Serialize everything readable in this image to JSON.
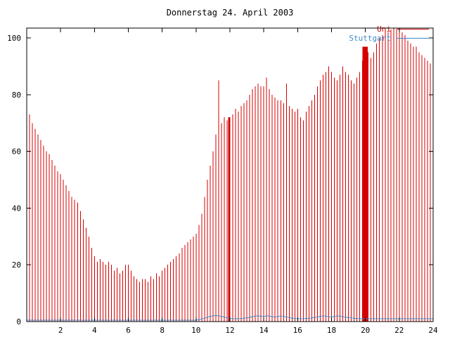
{
  "page": {
    "background": "#ffffff"
  },
  "chart_data": {
    "type": "bar",
    "title": "Donnerstag 24. April 2003",
    "xlabel": "",
    "ylabel": "",
    "xlim": [
      0,
      24
    ],
    "ylim": [
      0,
      103.5
    ],
    "x_ticks": [
      2,
      4,
      6,
      8,
      10,
      12,
      14,
      16,
      18,
      20,
      22,
      24
    ],
    "y_ticks": [
      0,
      20,
      40,
      60,
      80,
      100
    ],
    "grid": false,
    "legend_position": "top-right",
    "x_unit": "hours",
    "x_start_hours": 0,
    "x_step_hours": 0.1666667,
    "series": [
      {
        "name": "Uni",
        "type": "impulses",
        "color": "#d40000",
        "values": [
          75,
          73,
          70,
          68,
          66,
          64,
          62,
          60,
          59,
          57,
          55,
          53,
          52,
          50,
          48,
          46,
          44,
          43,
          42,
          39,
          36,
          33,
          30,
          26,
          23,
          21,
          22,
          21,
          20,
          21,
          20,
          18,
          19,
          17,
          18,
          20,
          20,
          18,
          16,
          15,
          14,
          15,
          15,
          14,
          16,
          15,
          17,
          16,
          18,
          19,
          20,
          21,
          22,
          23,
          24,
          26,
          27,
          28,
          29,
          30,
          31,
          34,
          38,
          44,
          50,
          55,
          60,
          66,
          85,
          70,
          72,
          71,
          70,
          73,
          75,
          74,
          76,
          77,
          78,
          80,
          82,
          83,
          84,
          83,
          83,
          86,
          82,
          80,
          79,
          78,
          78,
          77,
          84,
          76,
          75,
          74,
          75,
          72,
          71,
          74,
          76,
          78,
          80,
          83,
          85,
          87,
          88,
          90,
          88,
          86,
          85,
          87,
          90,
          88,
          87,
          85,
          84,
          86,
          88,
          92,
          97,
          95,
          93,
          95,
          98,
          100,
          101,
          103,
          102,
          103,
          104,
          103,
          103,
          102,
          101,
          99,
          98,
          97,
          97,
          95,
          94,
          93,
          92,
          91,
          90
        ]
      },
      {
        "name": "Stuttgart",
        "type": "line",
        "color": "#3f88c5",
        "values": [
          0.5,
          0.5,
          0.5,
          0.5,
          0.5,
          0.5,
          0.5,
          0.5,
          0.5,
          0.5,
          0.5,
          0.5,
          0.5,
          0.5,
          0.5,
          0.5,
          0.5,
          0.5,
          0.5,
          0.5,
          0.5,
          0.5,
          0.5,
          0.5,
          0.5,
          0.5,
          0.5,
          0.5,
          0.5,
          0.5,
          0.5,
          0.5,
          0.5,
          0.5,
          0.5,
          0.5,
          0.5,
          0.5,
          0.5,
          0.5,
          0.5,
          0.5,
          0.5,
          0.5,
          0.5,
          0.5,
          0.5,
          0.5,
          0.5,
          0.5,
          0.5,
          0.5,
          0.5,
          0.5,
          0.5,
          0.5,
          0.5,
          0.5,
          0.5,
          0.5,
          0.5,
          0.7,
          0.9,
          1.2,
          1.5,
          1.8,
          2.0,
          2.1,
          2.0,
          1.8,
          1.6,
          1.3,
          1.1,
          1.0,
          1.0,
          1.0,
          1.1,
          1.2,
          1.3,
          1.5,
          1.7,
          1.9,
          2.0,
          1.9,
          1.8,
          2.0,
          1.9,
          1.7,
          1.6,
          1.8,
          2.0,
          1.8,
          1.6,
          1.4,
          1.2,
          1.1,
          1.0,
          1.0,
          1.0,
          1.1,
          1.2,
          1.3,
          1.4,
          1.6,
          1.8,
          2.0,
          1.9,
          1.7,
          1.6,
          1.8,
          2.0,
          1.9,
          1.7,
          1.5,
          1.4,
          1.3,
          1.2,
          1.1,
          1.0,
          1.0,
          1.0,
          1.0,
          1.0,
          1.0,
          1.0,
          1.0,
          1.0,
          1.0,
          1.0,
          1.0,
          1.0,
          1.0,
          1.0,
          1.0,
          1.0,
          1.0,
          1.0,
          1.0,
          1.0,
          1.0,
          1.0,
          1.0,
          1.0,
          1.0,
          1.0
        ]
      }
    ],
    "wide_spikes": [
      {
        "t": 11.95,
        "value": 72,
        "width_hours": 0.12
      },
      {
        "t": 19.98,
        "value": 97,
        "width_hours": 0.3
      }
    ],
    "legend": {
      "entries": [
        {
          "label": "Uni",
          "color": "#d40000"
        },
        {
          "label": "Stuttgart",
          "color": "#3f88c5"
        }
      ]
    }
  },
  "colors": {
    "background": "#ffffff",
    "axis": "#000000",
    "bar": "#d40000",
    "line": "#3f88c5",
    "title_text": "#000000"
  }
}
